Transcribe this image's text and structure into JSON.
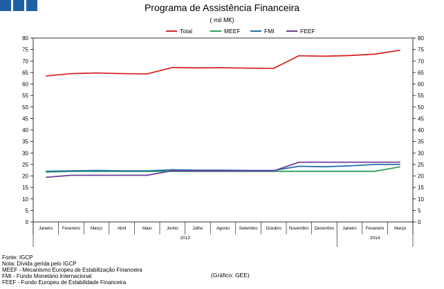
{
  "chart_data": {
    "type": "line",
    "title": "Programa de Assistência Financeira",
    "subtitle": "( mil M€)",
    "categories": [
      "Janeiro",
      "Fevereiro",
      "Março",
      "Abril",
      "Maio",
      "Junho",
      "Julho",
      "Agosto",
      "Setembro",
      "Outubro",
      "Novembro",
      "Dezembro",
      "Janeiro",
      "Fevereiro",
      "Março"
    ],
    "year_groups": [
      {
        "label": "2013",
        "start": 0,
        "end": 11
      },
      {
        "label": "2014",
        "start": 12,
        "end": 14
      }
    ],
    "ylim": [
      0,
      80
    ],
    "ytick_step": 5,
    "grid": false,
    "dual_axis_labels": true,
    "legend_position": "top-center",
    "series": [
      {
        "name": "Total",
        "color": "#d62728",
        "values": [
          63.5,
          64.5,
          64.8,
          64.5,
          64.4,
          67.2,
          67.0,
          67.1,
          66.9,
          66.8,
          72.3,
          72.1,
          72.4,
          73.0,
          74.7
        ]
      },
      {
        "name": "MEEF",
        "color": "#2ca05a",
        "values": [
          21.7,
          22.0,
          22.0,
          22.0,
          22.0,
          22.0,
          22.0,
          22.0,
          22.0,
          22.0,
          22.0,
          22.0,
          22.0,
          22.0,
          24.0
        ]
      },
      {
        "name": "FMI",
        "color": "#1f6fa8",
        "values": [
          22.0,
          22.2,
          22.4,
          22.2,
          22.2,
          22.7,
          22.5,
          22.5,
          22.4,
          22.4,
          24.2,
          24.0,
          24.4,
          25.0,
          25.0
        ]
      },
      {
        "name": "FEEF",
        "color": "#6a3d9a",
        "values": [
          19.4,
          20.3,
          20.3,
          20.3,
          20.3,
          22.3,
          22.2,
          22.2,
          22.2,
          22.2,
          26.0,
          26.0,
          26.0,
          26.0,
          26.0
        ]
      }
    ]
  },
  "notes": [
    "Fonte: IGCP",
    "Nota: Dívida gerida pelo IGCP",
    "MEEF - Mecanismo Europeu de Estabilização Financeira",
    "FMI - Fundo Monetário Internacional",
    "FEEF - Fundo Europeu de Estabilidade Financeira"
  ],
  "credit": "(Gráfico: GEE)"
}
